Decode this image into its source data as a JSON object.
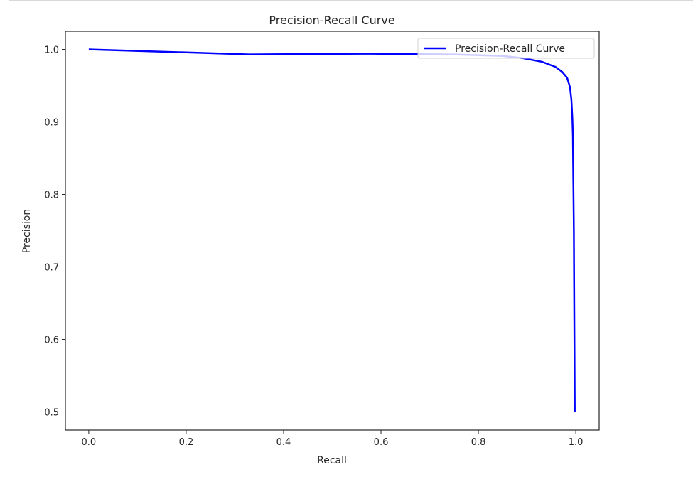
{
  "chart_data": {
    "type": "line",
    "title": "Precision-Recall Curve",
    "xlabel": "Recall",
    "ylabel": "Precision",
    "xlim": [
      -0.048,
      1.048
    ],
    "ylim": [
      0.475,
      1.025
    ],
    "xticks": [
      "0.0",
      "0.2",
      "0.4",
      "0.6",
      "0.8",
      "1.0"
    ],
    "yticks": [
      "0.5",
      "0.6",
      "0.7",
      "0.8",
      "0.9",
      "1.0"
    ],
    "grid": false,
    "legend": "top-right",
    "series": [
      {
        "name": "Precision-Recall Curve",
        "color": "#0000ff",
        "x": [
          0.0,
          0.33,
          0.58,
          0.75,
          0.85,
          0.89,
          0.93,
          0.958,
          0.972,
          0.982,
          0.988,
          0.991,
          0.993,
          0.994,
          0.996,
          0.998
        ],
        "y": [
          1.0,
          0.993,
          0.994,
          0.993,
          0.991,
          0.988,
          0.983,
          0.976,
          0.969,
          0.961,
          0.948,
          0.931,
          0.905,
          0.882,
          0.75,
          0.5
        ]
      }
    ]
  }
}
